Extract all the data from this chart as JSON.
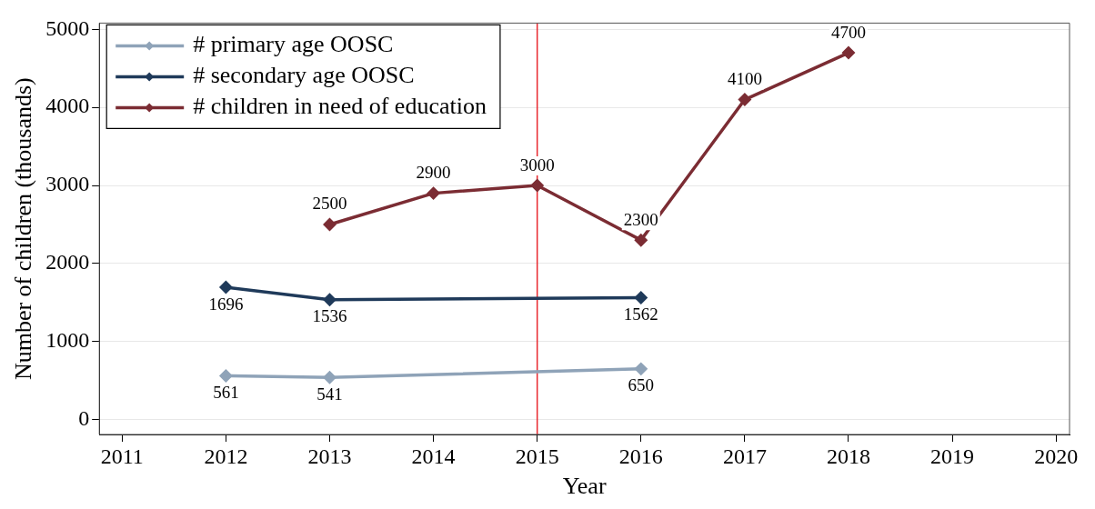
{
  "chart_data": {
    "type": "line",
    "xlabel": "Year",
    "ylabel": "Number of children (thousands)",
    "xlim": [
      2010.78,
      2020.13
    ],
    "xticks": [
      2011,
      2012,
      2013,
      2014,
      2015,
      2016,
      2017,
      2018,
      2019,
      2020
    ],
    "ylim": [
      -190,
      5080
    ],
    "yticks": [
      0,
      1000,
      2000,
      3000,
      4000,
      5000
    ],
    "series": [
      {
        "name": "# primary age OOSC",
        "color": "#8fa3b8",
        "x": [
          2012,
          2013,
          2016
        ],
        "values": [
          561,
          541,
          650
        ]
      },
      {
        "name": "# secondary age OOSC",
        "color": "#1f3a5a",
        "x": [
          2012,
          2013,
          2016
        ],
        "values": [
          1696,
          1536,
          1562
        ]
      },
      {
        "name": "# children in need of education",
        "color": "#7b2c33",
        "x": [
          2013,
          2014,
          2015,
          2016,
          2017,
          2018
        ],
        "values": [
          2500,
          2900,
          3000,
          2300,
          4100,
          4700
        ]
      }
    ],
    "ref_lines": [
      {
        "axis": "x",
        "value": 2015,
        "color": "#e8282e"
      }
    ],
    "data_labels": true,
    "grid": "y",
    "legend": "top left",
    "marker": "diamond",
    "line_style": "solid"
  }
}
